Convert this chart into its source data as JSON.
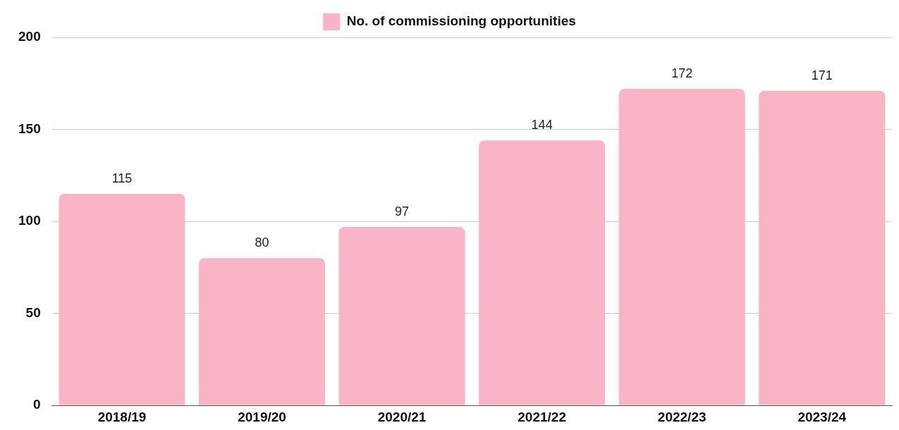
{
  "chart_data": {
    "type": "bar",
    "categories": [
      "2018/19",
      "2019/20",
      "2020/21",
      "2021/22",
      "2022/23",
      "2023/24"
    ],
    "series": [
      {
        "name": "No. of commissioning opportunities",
        "color": "#f9b4c8",
        "values": [
          115,
          80,
          97,
          144,
          172,
          171
        ]
      }
    ],
    "ylim": [
      0,
      200
    ],
    "yticks": [
      0,
      50,
      100,
      150,
      200
    ],
    "grid": "y",
    "legend": "top",
    "data_labels": true
  }
}
